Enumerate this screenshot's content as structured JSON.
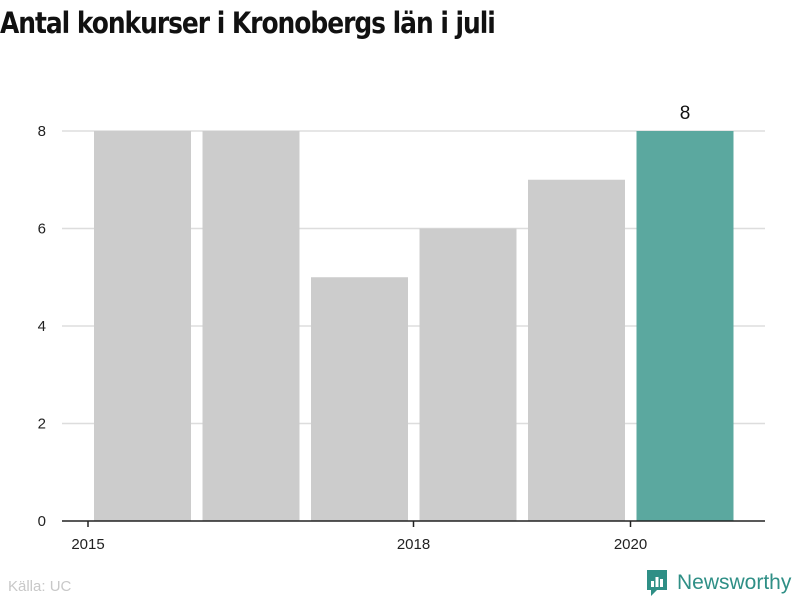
{
  "title": "Antal konkurser i Kronobergs län i juli",
  "source": "Källa: UC",
  "brand": {
    "name": "Newsworthy",
    "icon": "newsworthy-logo-icon"
  },
  "colors": {
    "bar": "#cccccc",
    "highlight": "#5ba89f",
    "grid": "#dddddd",
    "axis": "#222222",
    "brand": "#2f8f86"
  },
  "chart_data": {
    "type": "bar",
    "title": "Antal konkurser i Kronobergs län i juli",
    "xlabel": "",
    "ylabel": "",
    "categories": [
      2015,
      2016,
      2017,
      2018,
      2019,
      2020
    ],
    "values": [
      8,
      8,
      5,
      6,
      7,
      8
    ],
    "highlight_index": 5,
    "data_labels": [
      {
        "index": 5,
        "text": "8"
      }
    ],
    "x_ticks": [
      2015,
      2018,
      2020
    ],
    "y_ticks": [
      0,
      2,
      4,
      6,
      8
    ],
    "ylim": [
      0,
      8
    ],
    "grid": true,
    "legend": "none"
  }
}
